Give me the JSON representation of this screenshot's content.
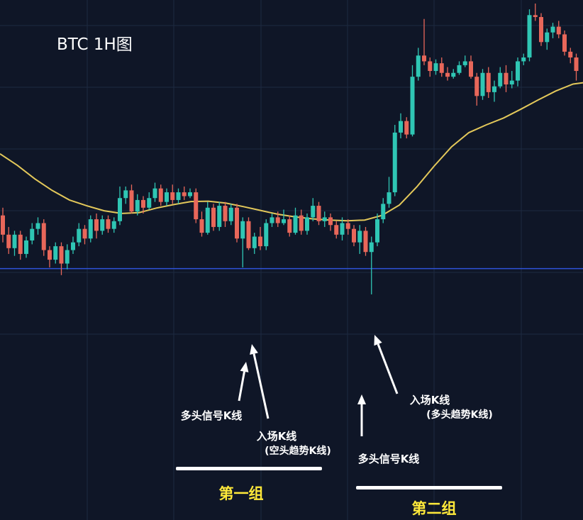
{
  "chart_data": {
    "type": "candlestick",
    "title": "BTC 1H图",
    "colors": {
      "background": "#0f1627",
      "grid": "#1e2a40",
      "up": "#2fc6b4",
      "down": "#e8675a",
      "moving_average": "#e3c85a",
      "support_line": "#2f52d8",
      "arrow": "#ffffff",
      "group_label": "#ffe93a"
    },
    "ylim": [
      0,
      100
    ],
    "support_level": 31.2,
    "candles": [
      [
        45.0,
        40.0,
        47.0,
        38.0
      ],
      [
        40.0,
        36.5,
        42.0,
        35.0
      ],
      [
        36.5,
        40.0,
        41.0,
        34.5
      ],
      [
        40.0,
        35.0,
        41.0,
        33.5
      ],
      [
        35.0,
        38.5,
        39.5,
        34.0
      ],
      [
        38.5,
        41.5,
        43.0,
        37.5
      ],
      [
        41.5,
        43.0,
        44.5,
        40.0
      ],
      [
        43.0,
        36.0,
        44.0,
        34.5
      ],
      [
        36.0,
        33.5,
        37.0,
        31.5
      ],
      [
        33.5,
        37.0,
        38.0,
        32.5
      ],
      [
        37.0,
        32.5,
        38.0,
        29.5
      ],
      [
        32.5,
        36.0,
        37.5,
        31.0
      ],
      [
        36.0,
        38.0,
        39.5,
        35.0
      ],
      [
        38.0,
        41.5,
        43.0,
        37.0
      ],
      [
        41.5,
        39.0,
        42.5,
        37.5
      ],
      [
        39.0,
        44.0,
        45.0,
        38.0
      ],
      [
        44.0,
        41.0,
        45.5,
        39.0
      ],
      [
        41.0,
        44.0,
        45.0,
        40.0
      ],
      [
        44.0,
        41.5,
        45.0,
        40.5
      ],
      [
        41.5,
        43.5,
        44.5,
        40.5
      ],
      [
        43.5,
        49.5,
        52.5,
        42.5
      ],
      [
        49.5,
        51.5,
        52.5,
        48.0
      ],
      [
        51.5,
        46.0,
        53.0,
        45.5
      ],
      [
        46.0,
        49.0,
        50.5,
        45.0
      ],
      [
        49.0,
        47.0,
        50.0,
        45.5
      ],
      [
        47.0,
        49.5,
        51.0,
        46.5
      ],
      [
        49.5,
        52.0,
        53.5,
        48.5
      ],
      [
        52.0,
        48.5,
        53.0,
        47.5
      ],
      [
        48.5,
        51.0,
        52.0,
        47.5
      ],
      [
        51.0,
        49.0,
        53.0,
        48.0
      ],
      [
        49.0,
        51.0,
        52.0,
        48.0
      ],
      [
        51.0,
        50.0,
        52.5,
        49.0
      ],
      [
        50.0,
        51.0,
        52.0,
        49.5
      ],
      [
        51.0,
        44.0,
        52.0,
        43.0
      ],
      [
        44.0,
        40.5,
        46.0,
        39.5
      ],
      [
        40.5,
        47.0,
        48.5,
        40.0
      ],
      [
        47.0,
        42.0,
        48.0,
        41.0
      ],
      [
        42.0,
        47.5,
        48.5,
        41.0
      ],
      [
        47.5,
        43.5,
        48.5,
        42.0
      ],
      [
        43.5,
        47.0,
        48.0,
        42.5
      ],
      [
        47.0,
        39.0,
        48.0,
        38.0
      ],
      [
        39.0,
        43.5,
        44.5,
        31.5
      ],
      [
        43.5,
        36.5,
        44.5,
        36.0
      ],
      [
        36.5,
        39.5,
        40.5,
        35.0
      ],
      [
        39.5,
        37.0,
        42.0,
        36.0
      ],
      [
        37.0,
        43.0,
        44.0,
        36.0
      ],
      [
        43.0,
        44.5,
        45.5,
        42.0
      ],
      [
        44.5,
        43.0,
        46.0,
        42.0
      ],
      [
        43.0,
        44.0,
        46.5,
        42.5
      ],
      [
        44.0,
        40.5,
        45.0,
        39.5
      ],
      [
        40.5,
        45.0,
        47.0,
        40.0
      ],
      [
        45.0,
        41.0,
        46.5,
        40.0
      ],
      [
        41.0,
        44.5,
        45.5,
        40.0
      ],
      [
        44.5,
        47.5,
        49.5,
        43.5
      ],
      [
        47.5,
        43.5,
        48.5,
        42.5
      ],
      [
        43.5,
        44.5,
        46.0,
        42.0
      ],
      [
        44.5,
        42.5,
        45.5,
        41.0
      ],
      [
        42.5,
        40.0,
        43.5,
        39.0
      ],
      [
        40.0,
        43.0,
        44.5,
        38.5
      ],
      [
        43.0,
        41.5,
        44.0,
        40.0
      ],
      [
        41.5,
        38.0,
        42.5,
        37.0
      ],
      [
        38.0,
        41.0,
        42.5,
        35.0
      ],
      [
        41.0,
        35.5,
        42.0,
        34.5
      ],
      [
        35.5,
        38.0,
        39.5,
        24.5
      ],
      [
        38.0,
        44.0,
        45.5,
        37.0
      ],
      [
        44.0,
        48.0,
        49.5,
        43.0
      ],
      [
        48.0,
        51.0,
        55.0,
        47.0
      ],
      [
        51.0,
        66.5,
        68.5,
        50.0
      ],
      [
        66.5,
        69.5,
        71.5,
        65.0
      ],
      [
        69.5,
        66.0,
        70.5,
        65.0
      ],
      [
        66.0,
        81.0,
        84.0,
        65.5
      ],
      [
        81.0,
        86.5,
        88.5,
        80.0
      ],
      [
        86.5,
        85.0,
        96.0,
        84.0
      ],
      [
        85.0,
        82.5,
        86.0,
        81.0
      ],
      [
        82.5,
        84.5,
        85.5,
        81.5
      ],
      [
        84.5,
        82.0,
        86.0,
        81.0
      ],
      [
        82.0,
        81.0,
        83.5,
        80.0
      ],
      [
        81.0,
        82.0,
        83.0,
        80.5
      ],
      [
        82.0,
        84.0,
        85.0,
        81.5
      ],
      [
        84.0,
        85.0,
        86.5,
        83.5
      ],
      [
        85.0,
        81.0,
        86.5,
        80.5
      ],
      [
        81.0,
        76.0,
        82.0,
        73.5
      ],
      [
        76.0,
        82.0,
        83.0,
        75.0
      ],
      [
        82.0,
        77.0,
        83.5,
        75.5
      ],
      [
        77.0,
        78.5,
        80.0,
        74.5
      ],
      [
        78.5,
        82.0,
        83.5,
        78.0
      ],
      [
        82.0,
        79.0,
        84.0,
        77.0
      ],
      [
        79.0,
        80.0,
        82.5,
        78.0
      ],
      [
        80.0,
        85.0,
        86.0,
        78.5
      ],
      [
        85.0,
        86.0,
        87.0,
        84.0
      ],
      [
        86.0,
        97.0,
        98.5,
        85.0
      ],
      [
        97.0,
        96.5,
        100.0,
        95.5
      ],
      [
        96.5,
        90.0,
        97.5,
        89.0
      ],
      [
        90.0,
        92.5,
        93.5,
        88.0
      ],
      [
        92.5,
        94.0,
        95.0,
        91.0
      ],
      [
        94.0,
        92.0,
        95.5,
        91.0
      ],
      [
        92.0,
        87.5,
        93.0,
        86.5
      ],
      [
        87.5,
        86.0,
        88.5,
        84.5
      ],
      [
        86.0,
        82.5,
        87.0,
        80.0
      ]
    ],
    "ma_y": [
      61.0,
      58.0,
      54.5,
      51.5,
      49.0,
      47.5,
      46.2,
      45.5,
      45.7,
      46.9,
      47.8,
      48.6,
      48.7,
      48.2,
      47.3,
      46.3,
      45.3,
      44.6,
      44.1,
      43.8,
      43.6,
      43.8,
      45.0,
      47.7,
      52.4,
      57.8,
      62.8,
      66.5,
      68.5,
      70.3,
      72.6,
      75.0,
      77.3,
      79.1,
      79.7
    ],
    "annotations": [
      {
        "text": "多头信号K线",
        "lines": [
          "多头信号K线"
        ]
      },
      {
        "text": "入场K线 (空头趋势K线)",
        "lines": [
          "入场K线",
          "(空头趋势K线)"
        ]
      },
      {
        "text": "多头信号K线",
        "lines": [
          "多头信号K线"
        ]
      },
      {
        "text": "入场K线 (多头趋势K线)",
        "lines": [
          "入场K线",
          "(多头趋势K线)"
        ]
      }
    ],
    "groups": [
      {
        "label": "第一组"
      },
      {
        "label": "第二组"
      }
    ]
  }
}
